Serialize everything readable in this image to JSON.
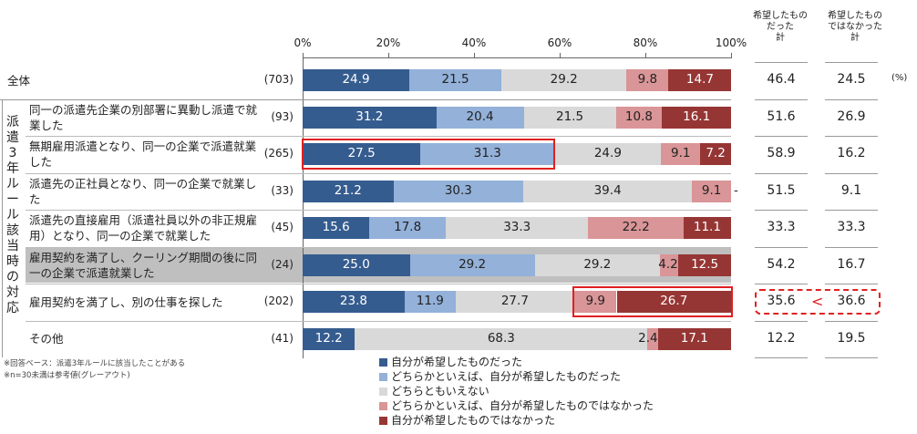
{
  "chart_data": {
    "type": "bar",
    "stacked": true,
    "orientation": "horizontal",
    "axis_ticks": [
      "0%",
      "20%",
      "40%",
      "60%",
      "80%",
      "100%"
    ],
    "xlim": [
      0,
      100
    ],
    "column_headers": {
      "hope_sum": [
        "希望したもの",
        "だった",
        "計"
      ],
      "not_hope_sum": [
        "希望したもの",
        "ではなかった",
        "計"
      ]
    },
    "unit_label": "(%)",
    "group_label": "派遣3年ルール該当時の対応",
    "categories": [
      {
        "label": "全体",
        "n": "(703)",
        "values": [
          24.9,
          21.5,
          29.2,
          9.8,
          14.7
        ],
        "hope": "46.4",
        "not_hope": "24.5",
        "shaded": false
      },
      {
        "label": "同一の派遣先企業の別部署に異動し派遣で就業した",
        "n": "(93)",
        "values": [
          31.2,
          20.4,
          21.5,
          10.8,
          16.1
        ],
        "hope": "51.6",
        "not_hope": "26.9",
        "shaded": false
      },
      {
        "label": "無期雇用派遣となり、同一の企業で派遣就業した",
        "n": "(265)",
        "values": [
          27.5,
          31.3,
          24.9,
          9.1,
          7.2
        ],
        "hope": "58.9",
        "not_hope": "16.2",
        "shaded": false
      },
      {
        "label": "派遣先の正社員となり、同一の企業で就業した",
        "n": "(33)",
        "values": [
          21.2,
          30.3,
          39.4,
          9.1,
          0
        ],
        "hope": "51.5",
        "not_hope": "9.1",
        "shaded": false,
        "dash_label": "-"
      },
      {
        "label": "派遣先の直接雇用（派遣社員以外の非正規雇用）となり、同一の企業で就業した",
        "n": "(45)",
        "values": [
          15.6,
          17.8,
          33.3,
          22.2,
          11.1
        ],
        "hope": "33.3",
        "not_hope": "33.3",
        "shaded": false
      },
      {
        "label": "雇用契約を満了し、クーリング期間の後に同一の企業で派遣就業した",
        "n": "(24)",
        "values": [
          25.0,
          29.2,
          29.2,
          4.2,
          12.5
        ],
        "hope": "54.2",
        "not_hope": "16.7",
        "shaded": true
      },
      {
        "label": "雇用契約を満了し、別の仕事を探した",
        "n": "(202)",
        "values": [
          23.8,
          11.9,
          27.7,
          9.9,
          26.7
        ],
        "hope": "35.6",
        "not_hope": "36.6",
        "shaded": false,
        "compare": "<"
      },
      {
        "label": "その他",
        "n": "(41)",
        "values": [
          12.2,
          0,
          68.3,
          2.4,
          17.1
        ],
        "hope": "12.2",
        "not_hope": "19.5",
        "shaded": false
      }
    ],
    "series": [
      {
        "name": "自分が希望したものだった",
        "color": "#355c8f"
      },
      {
        "name": "どちらかといえば、自分が希望したものだった",
        "color": "#93b1d9"
      },
      {
        "name": "どちらともいえない",
        "color": "#d9d9d9"
      },
      {
        "name": "どちらかといえば、自分が希望したものではなかった",
        "color": "#d99597"
      },
      {
        "name": "自分が希望したものではなかった",
        "color": "#963634"
      }
    ],
    "notes": [
      "※回答ベース：派遣3年ルールに該当したことがある",
      "※n=30未満は参考値(グレーアウト)"
    ]
  }
}
